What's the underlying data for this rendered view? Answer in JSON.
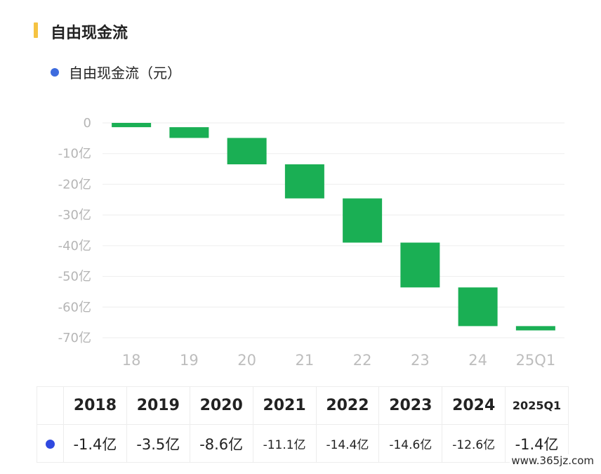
{
  "header": {
    "title": "自由现金流",
    "accent_color": "#f5c342"
  },
  "legend": {
    "label": "自由现金流（元）",
    "dot_color": "#3d6bde"
  },
  "chart_data": {
    "type": "bar",
    "subtype": "waterfall",
    "categories": [
      "18",
      "19",
      "20",
      "21",
      "22",
      "23",
      "24",
      "25Q1"
    ],
    "series": [
      {
        "name": "自由现金流（元）",
        "color": "#1aaf54",
        "start": [
          0,
          -1.4,
          -4.9,
          -13.5,
          -24.6,
          -39.0,
          -53.6,
          -66.2
        ],
        "end": [
          -1.4,
          -4.9,
          -13.5,
          -24.6,
          -39.0,
          -53.6,
          -66.2,
          -67.6
        ],
        "values": [
          -1.4,
          -3.5,
          -8.6,
          -11.1,
          -14.4,
          -14.6,
          -12.6,
          -1.4
        ]
      }
    ],
    "y_ticks": [
      0,
      -10,
      -20,
      -30,
      -40,
      -50,
      -60,
      -70
    ],
    "y_tick_labels": [
      "0",
      "-10亿",
      "-20亿",
      "-30亿",
      "-40亿",
      "-50亿",
      "-60亿",
      "-70亿"
    ],
    "ylim": [
      -70,
      0
    ],
    "unit": "亿",
    "grid": true,
    "legend_position": "top-left"
  },
  "table": {
    "headers": [
      "2018",
      "2019",
      "2020",
      "2021",
      "2022",
      "2023",
      "2024",
      "2025Q1"
    ],
    "values": [
      "-1.4亿",
      "-3.5亿",
      "-8.6亿",
      "-11.1亿",
      "-14.4亿",
      "-14.6亿",
      "-12.6亿",
      "-1.4亿"
    ],
    "row_dot_color": "#3049e0"
  },
  "watermark": "www.365jz.com"
}
